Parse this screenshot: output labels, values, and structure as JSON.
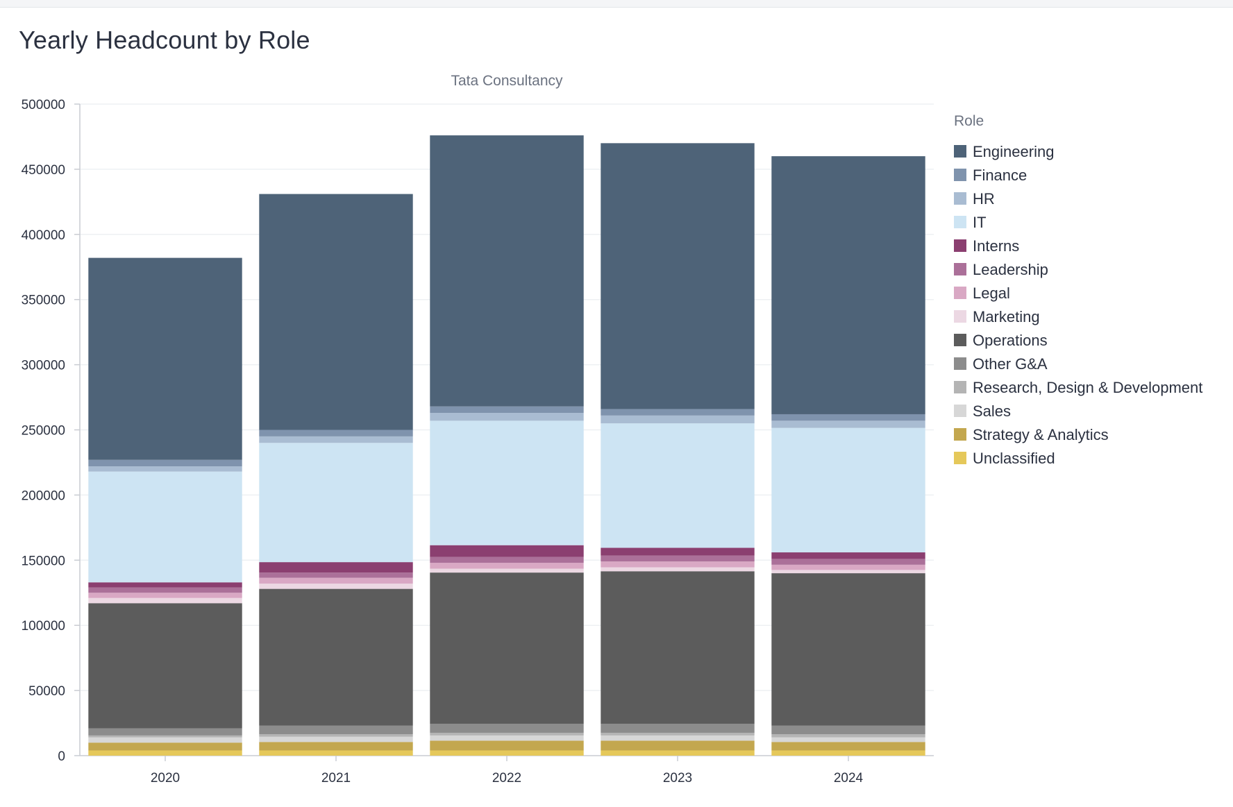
{
  "card": {
    "title": "Yearly Headcount by Role"
  },
  "chart_data": {
    "type": "bar",
    "stacked": true,
    "title": "Tata Consultancy",
    "xlabel": "",
    "ylabel": "",
    "ylim": [
      0,
      500000
    ],
    "yticks": [
      0,
      50000,
      100000,
      150000,
      200000,
      250000,
      300000,
      350000,
      400000,
      450000,
      500000
    ],
    "categories": [
      "2020",
      "2021",
      "2022",
      "2023",
      "2024"
    ],
    "legend_title": "Role",
    "legend_position": "right",
    "series": [
      {
        "name": "Unclassified",
        "color": "#e5c85a",
        "values": [
          4000,
          4000,
          4000,
          4000,
          4000
        ]
      },
      {
        "name": "Strategy & Analytics",
        "color": "#c3a74f",
        "values": [
          6000,
          6500,
          7500,
          7500,
          6500
        ]
      },
      {
        "name": "Sales",
        "color": "#d7d7d7",
        "values": [
          4000,
          4000,
          4000,
          4000,
          3500
        ]
      },
      {
        "name": "Research, Design & Development",
        "color": "#b4b4b4",
        "values": [
          1500,
          2000,
          2000,
          2000,
          2500
        ]
      },
      {
        "name": "Other G&A",
        "color": "#8c8c8c",
        "values": [
          5500,
          6500,
          7000,
          7000,
          6500
        ]
      },
      {
        "name": "Operations",
        "color": "#5c5c5c",
        "values": [
          96000,
          105000,
          116000,
          117000,
          117000
        ]
      },
      {
        "name": "Marketing",
        "color": "#ecd8e3",
        "values": [
          4000,
          4000,
          3000,
          3000,
          2500
        ]
      },
      {
        "name": "Legal",
        "color": "#d9a8c4",
        "values": [
          4000,
          4500,
          4500,
          4500,
          4000
        ]
      },
      {
        "name": "Leadership",
        "color": "#ab7099",
        "values": [
          4000,
          4000,
          4500,
          4500,
          4500
        ]
      },
      {
        "name": "Interns",
        "color": "#8b3f70",
        "values": [
          4000,
          8000,
          9000,
          6000,
          5000
        ]
      },
      {
        "name": "IT",
        "color": "#cde4f3",
        "values": [
          85000,
          91500,
          95500,
          95500,
          95500
        ]
      },
      {
        "name": "HR",
        "color": "#a9bcd2",
        "values": [
          4000,
          5000,
          6000,
          6000,
          5500
        ]
      },
      {
        "name": "Finance",
        "color": "#7f93ad",
        "values": [
          5000,
          5000,
          5000,
          5000,
          5000
        ]
      },
      {
        "name": "Engineering",
        "color": "#4e6378",
        "values": [
          155000,
          181000,
          208000,
          204000,
          198000
        ]
      }
    ],
    "legend_order": [
      "Engineering",
      "Finance",
      "HR",
      "IT",
      "Interns",
      "Leadership",
      "Legal",
      "Marketing",
      "Operations",
      "Other G&A",
      "Research, Design & Development",
      "Sales",
      "Strategy & Analytics",
      "Unclassified"
    ]
  }
}
